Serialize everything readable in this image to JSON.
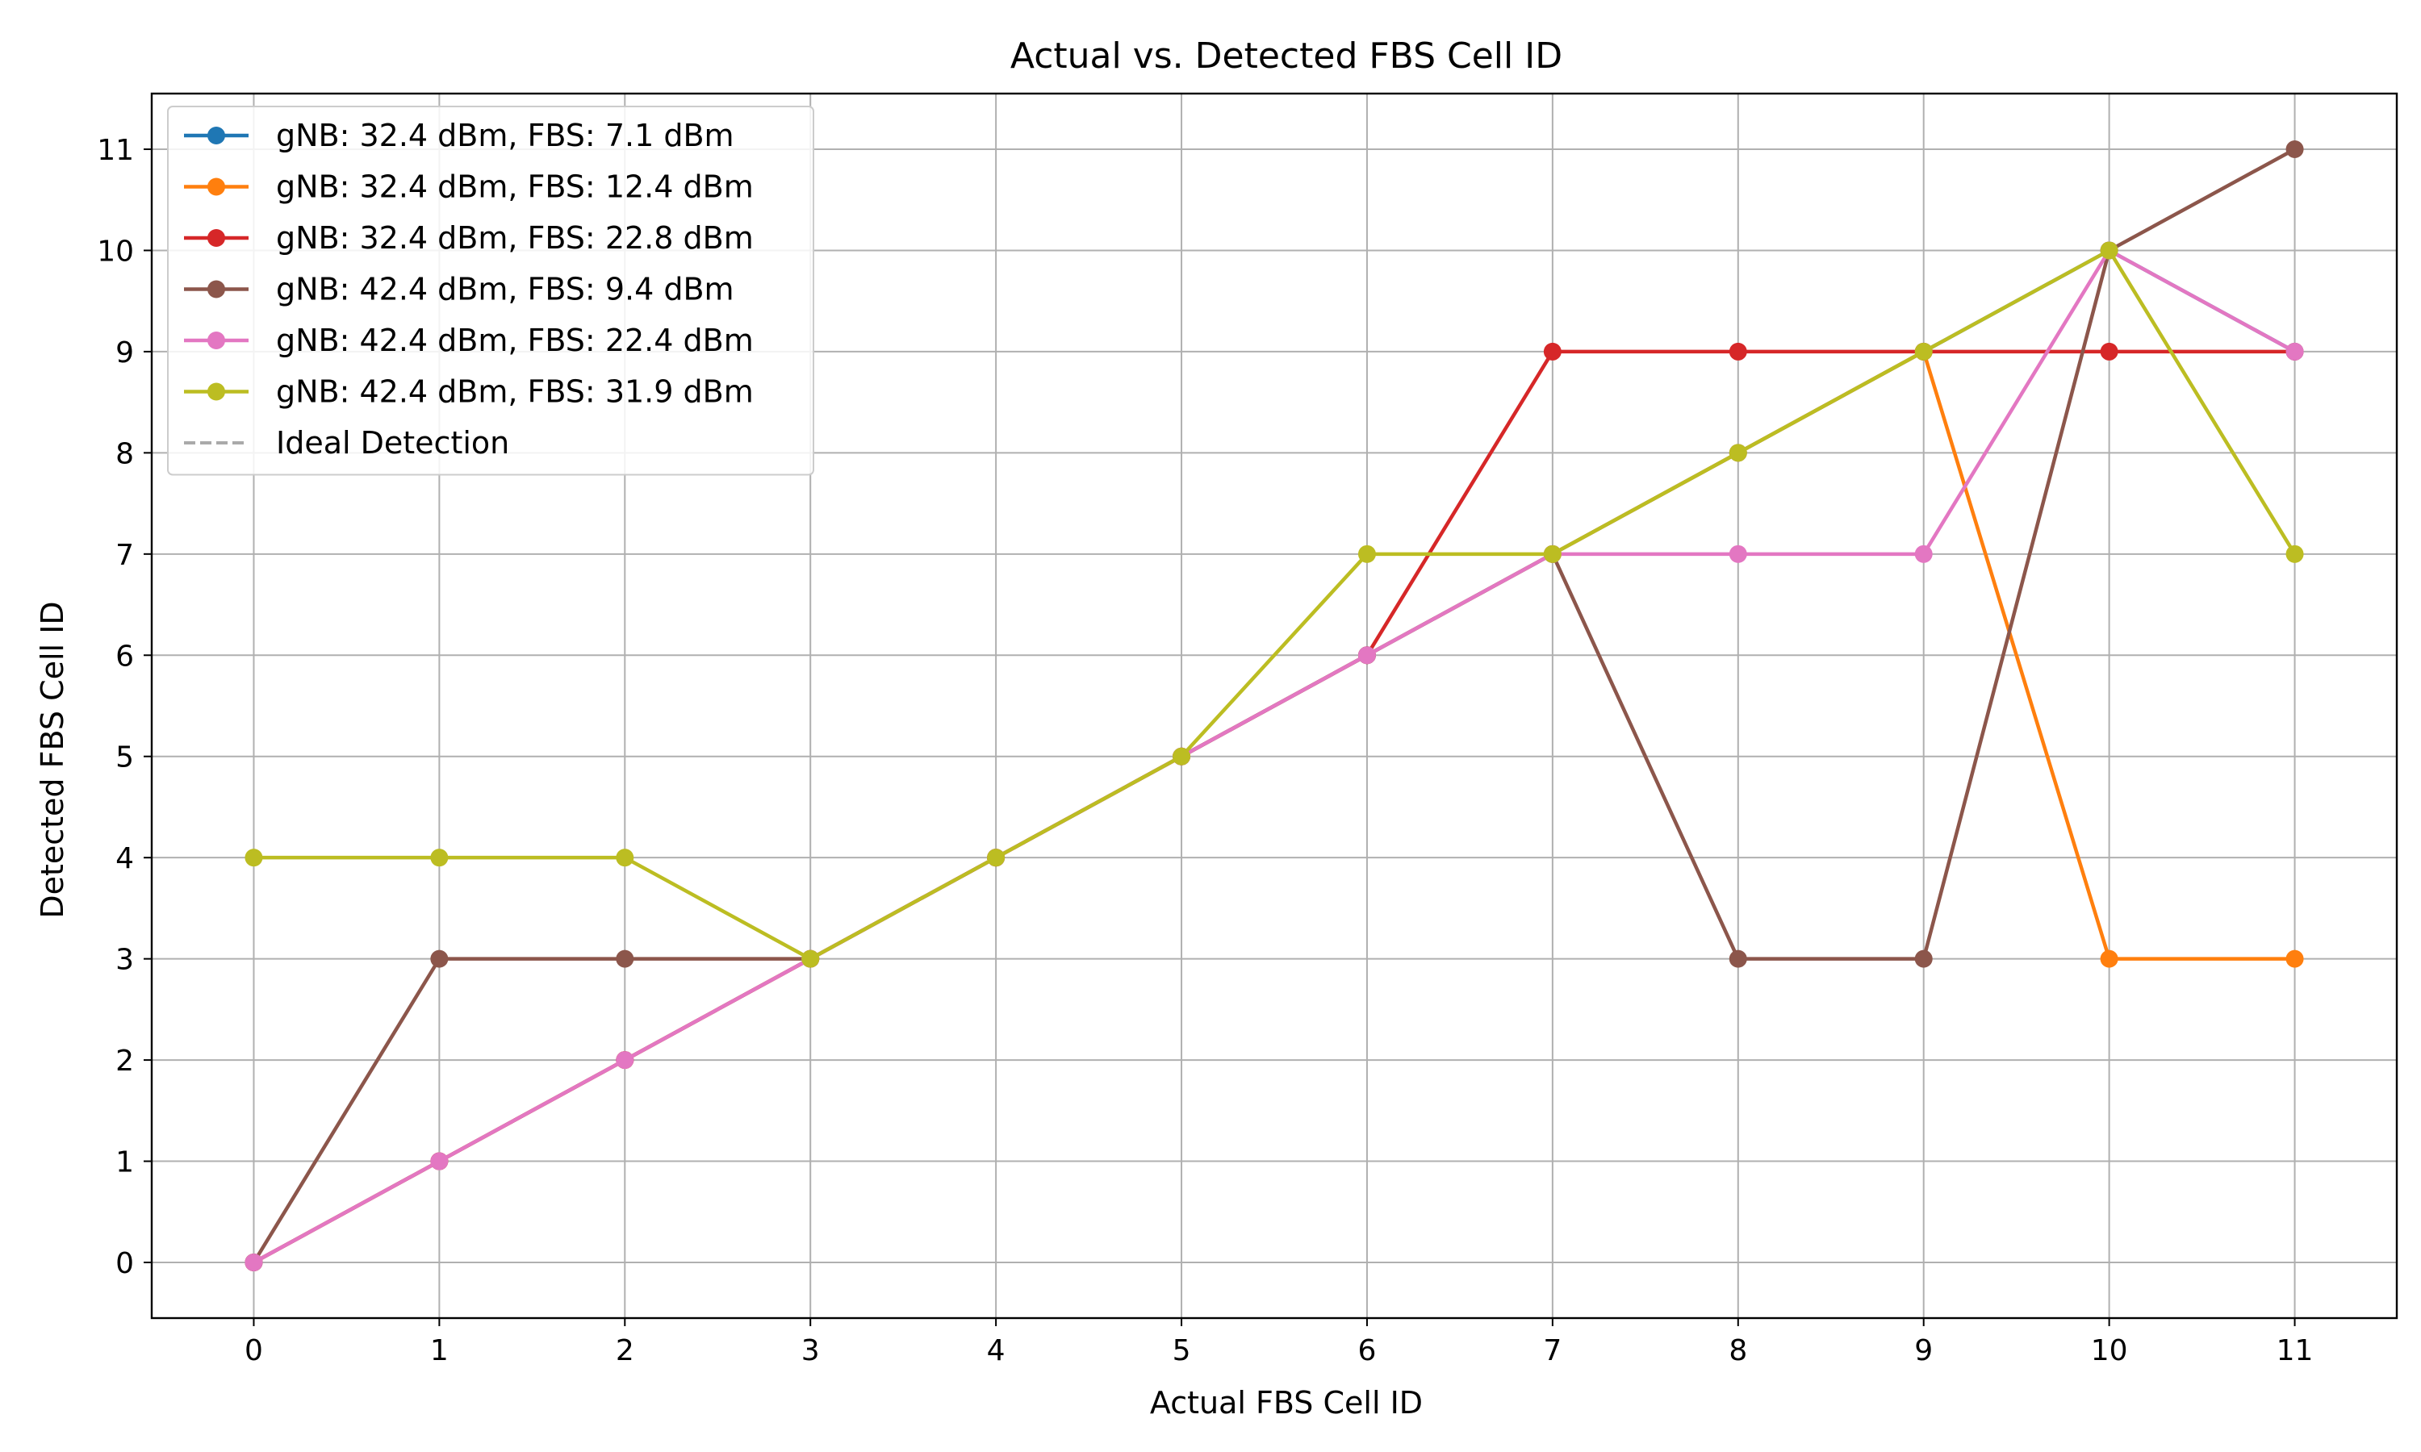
{
  "chart_data": {
    "type": "line",
    "title": "Actual vs. Detected FBS Cell ID",
    "xlabel": "Actual FBS Cell ID",
    "ylabel": "Detected FBS Cell ID",
    "xlim": [
      -0.55,
      11.55
    ],
    "ylim": [
      -0.55,
      11.55
    ],
    "xticks": [
      0,
      1,
      2,
      3,
      4,
      5,
      6,
      7,
      8,
      9,
      10,
      11
    ],
    "yticks": [
      0,
      1,
      2,
      3,
      4,
      5,
      6,
      7,
      8,
      9,
      10,
      11
    ],
    "grid": true,
    "legend_position": "top-left",
    "x": [
      0,
      1,
      2,
      3,
      4,
      5,
      6,
      7,
      8,
      9,
      10,
      11
    ],
    "series": [
      {
        "name": "gNB: 32.4 dBm, FBS: 7.1 dBm",
        "color": "#1f77b4",
        "values": [
          0,
          1,
          2,
          3,
          4,
          5,
          6,
          7,
          8,
          9,
          10,
          9
        ]
      },
      {
        "name": "gNB: 32.4 dBm, FBS: 12.4 dBm",
        "color": "#ff7f0e",
        "values": [
          0,
          1,
          2,
          3,
          4,
          5,
          6,
          7,
          8,
          9,
          3,
          3
        ]
      },
      {
        "name": "gNB: 32.4 dBm, FBS: 22.8 dBm",
        "color": "#d62728",
        "values": [
          0,
          1,
          2,
          3,
          4,
          5,
          6,
          9,
          9,
          9,
          9,
          9
        ]
      },
      {
        "name": "gNB: 42.4 dBm, FBS: 9.4 dBm",
        "color": "#8c564b",
        "values": [
          0,
          3,
          3,
          3,
          4,
          5,
          6,
          7,
          3,
          3,
          10,
          11
        ]
      },
      {
        "name": "gNB: 42.4 dBm, FBS: 22.4 dBm",
        "color": "#e377c2",
        "values": [
          0,
          1,
          2,
          3,
          4,
          5,
          6,
          7,
          7,
          7,
          10,
          9
        ]
      },
      {
        "name": "gNB: 42.4 dBm, FBS: 31.9 dBm",
        "color": "#bcbd22",
        "values": [
          4,
          4,
          4,
          3,
          4,
          5,
          7,
          7,
          8,
          9,
          10,
          7
        ]
      }
    ],
    "reference_line": {
      "name": "Ideal Detection",
      "color": "#aaaaaa",
      "style": "dashed",
      "x": [
        0,
        11
      ],
      "y": [
        0,
        11
      ]
    }
  }
}
